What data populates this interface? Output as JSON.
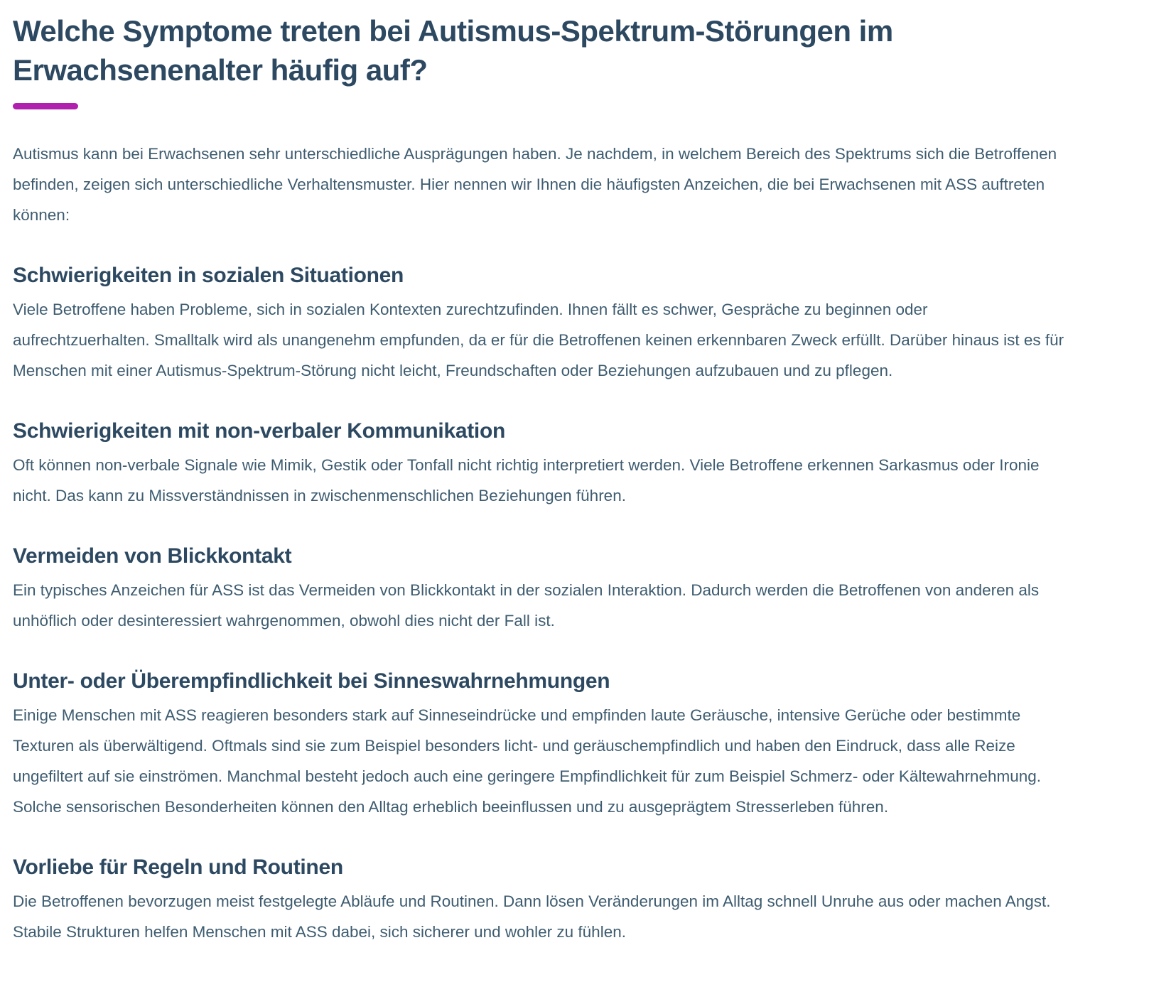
{
  "colors": {
    "background": "#ffffff",
    "heading": "#2d4961",
    "body_text": "#3e5c70",
    "accent": "#b01fad"
  },
  "page": {
    "title": "Welche Symptome treten bei Autismus-Spektrum-Störungen im Erwachsenenalter häufig auf?",
    "intro": "Autismus kann bei Erwachsenen sehr unterschiedliche Ausprägungen haben. Je nachdem, in welchem Bereich des Spektrums sich die Betroffenen befinden, zeigen sich unterschiedliche Verhaltensmuster. Hier nennen wir Ihnen die häufigsten Anzeichen, die bei Erwachsenen mit ASS auftreten können:"
  },
  "sections": [
    {
      "heading": "Schwierigkeiten in sozialen Situationen",
      "body": "Viele Betroffene haben Probleme, sich in sozialen Kontexten zurechtzufinden. Ihnen fällt es schwer, Gespräche zu beginnen oder aufrechtzuerhalten. Smalltalk wird als unangenehm empfunden, da er für die Betroffenen keinen erkennbaren Zweck erfüllt. Darüber hinaus ist es für Menschen mit einer Autismus-Spektrum-Störung nicht leicht, Freundschaften oder Beziehungen aufzubauen und zu pflegen."
    },
    {
      "heading": "Schwierigkeiten mit non-verbaler Kommunikation",
      "body": "Oft können non-verbale Signale wie Mimik, Gestik oder Tonfall nicht richtig interpretiert werden. Viele Betroffene erkennen Sarkasmus oder Ironie nicht. Das kann zu Missverständnissen in zwischenmenschlichen Beziehungen führen."
    },
    {
      "heading": "Vermeiden von Blickkontakt",
      "body": "Ein typisches Anzeichen für ASS ist das Vermeiden von Blickkontakt in der sozialen Interaktion. Dadurch werden die Betroffenen von anderen als unhöflich oder desinteressiert wahrgenommen, obwohl dies nicht der Fall ist."
    },
    {
      "heading": "Unter- oder Überempfindlichkeit bei Sinneswahrnehmungen",
      "body": "Einige Menschen mit ASS reagieren besonders stark auf Sinneseindrücke und empfinden laute Geräusche, intensive Gerüche oder bestimmte Texturen als überwältigend. Oftmals sind sie zum Beispiel besonders licht- und geräuschempfindlich und haben den Eindruck, dass alle Reize ungefiltert auf sie einströmen. Manchmal besteht jedoch auch eine geringere Empfindlichkeit für zum Beispiel Schmerz- oder Kältewahrnehmung. Solche sensorischen Besonderheiten können den Alltag erheblich beeinflussen und zu ausgeprägtem Stresserleben führen."
    },
    {
      "heading": "Vorliebe für Regeln und Routinen",
      "body": "Die Betroffenen bevorzugen meist festgelegte Abläufe und Routinen. Dann lösen Veränderungen im Alltag schnell Unruhe aus oder machen Angst. Stabile Strukturen helfen Menschen mit ASS dabei, sich sicherer und wohler zu fühlen."
    }
  ]
}
